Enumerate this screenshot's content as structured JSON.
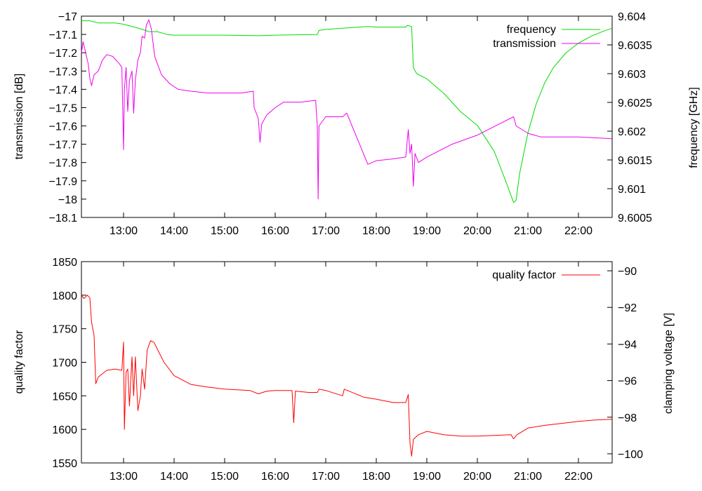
{
  "chart_data": [
    {
      "type": "line",
      "ylabel_left": "transmission [dB]",
      "ylabel_right": "frequency [GHz]",
      "x_ticks": [
        "13:00",
        "14:00",
        "15:00",
        "16:00",
        "17:00",
        "18:00",
        "19:00",
        "20:00",
        "21:00",
        "22:00"
      ],
      "x_range": [
        "12:10",
        "22:40"
      ],
      "yleft_ticks": [
        "-17",
        "-17.1",
        "-17.2",
        "-17.3",
        "-17.4",
        "-17.5",
        "-17.6",
        "-17.7",
        "-17.8",
        "-17.9",
        "-18",
        "-18.1"
      ],
      "yleft_range": [
        -18.1,
        -17
      ],
      "yright_ticks": [
        "9.604",
        "9.6035",
        "9.603",
        "9.6025",
        "9.602",
        "9.6015",
        "9.601",
        "9.6005"
      ],
      "yright_range": [
        9.6005,
        9.604
      ],
      "legend_position": "top-right",
      "series": [
        {
          "name": "frequency",
          "axis": "right",
          "color": "#00dd00",
          "points": [
            [
              "12:10",
              9.60392
            ],
            [
              "12:20",
              9.60392
            ],
            [
              "12:30",
              9.60388
            ],
            [
              "12:50",
              9.60388
            ],
            [
              "13:00",
              9.60386
            ],
            [
              "13:20",
              9.60378
            ],
            [
              "13:30",
              9.60373
            ],
            [
              "13:40",
              9.60373
            ],
            [
              "13:52",
              9.60368
            ],
            [
              "14:00",
              9.60367
            ],
            [
              "15:00",
              9.60367
            ],
            [
              "15:40",
              9.60366
            ],
            [
              "16:00",
              9.60367
            ],
            [
              "16:50",
              9.60368
            ],
            [
              "16:52",
              9.60375
            ],
            [
              "17:00",
              9.60377
            ],
            [
              "17:30",
              9.6038
            ],
            [
              "17:50",
              9.60382
            ],
            [
              "18:00",
              9.60381
            ],
            [
              "18:35",
              9.60381
            ],
            [
              "18:37",
              9.60384
            ],
            [
              "18:42",
              9.60382
            ],
            [
              "18:44",
              9.6031
            ],
            [
              "18:48",
              9.603
            ],
            [
              "19:00",
              9.60291
            ],
            [
              "19:20",
              9.60266
            ],
            [
              "19:40",
              9.60234
            ],
            [
              "20:00",
              9.6021
            ],
            [
              "20:20",
              9.60165
            ],
            [
              "20:35",
              9.60108
            ],
            [
              "20:43",
              9.60076
            ],
            [
              "20:46",
              9.6008
            ],
            [
              "20:50",
              9.60125
            ],
            [
              "21:00",
              9.60197
            ],
            [
              "21:10",
              9.60248
            ],
            [
              "21:20",
              9.60284
            ],
            [
              "21:30",
              9.6031
            ],
            [
              "21:45",
              9.60336
            ],
            [
              "22:00",
              9.60353
            ],
            [
              "22:15",
              9.60365
            ],
            [
              "22:30",
              9.60374
            ],
            [
              "22:40",
              9.60379
            ]
          ]
        },
        {
          "name": "transmission",
          "axis": "left",
          "color": "#ee00ee",
          "points": [
            [
              "12:10",
              -17.2
            ],
            [
              "12:12",
              -17.14
            ],
            [
              "12:15",
              -17.2
            ],
            [
              "12:18",
              -17.26
            ],
            [
              "12:20",
              -17.34
            ],
            [
              "12:22",
              -17.38
            ],
            [
              "12:25",
              -17.32
            ],
            [
              "12:30",
              -17.3
            ],
            [
              "12:35",
              -17.24
            ],
            [
              "12:40",
              -17.21
            ],
            [
              "12:47",
              -17.22
            ],
            [
              "12:55",
              -17.26
            ],
            [
              "12:58",
              -17.28
            ],
            [
              "13:00",
              -17.73
            ],
            [
              "13:01",
              -17.4
            ],
            [
              "13:03",
              -17.28
            ],
            [
              "13:05",
              -17.52
            ],
            [
              "13:07",
              -17.35
            ],
            [
              "13:10",
              -17.3
            ],
            [
              "13:12",
              -17.53
            ],
            [
              "13:14",
              -17.35
            ],
            [
              "13:17",
              -17.24
            ],
            [
              "13:20",
              -17.2
            ],
            [
              "13:22",
              -17.11
            ],
            [
              "13:25",
              -17.12
            ],
            [
              "13:27",
              -17.05
            ],
            [
              "13:30",
              -17.02
            ],
            [
              "13:33",
              -17.07
            ],
            [
              "13:37",
              -17.22
            ],
            [
              "13:45",
              -17.32
            ],
            [
              "13:55",
              -17.37
            ],
            [
              "14:05",
              -17.4
            ],
            [
              "14:20",
              -17.41
            ],
            [
              "14:40",
              -17.42
            ],
            [
              "15:00",
              -17.42
            ],
            [
              "15:20",
              -17.42
            ],
            [
              "15:34",
              -17.41
            ],
            [
              "15:35",
              -17.5
            ],
            [
              "15:40",
              -17.56
            ],
            [
              "15:42",
              -17.69
            ],
            [
              "15:44",
              -17.59
            ],
            [
              "15:50",
              -17.54
            ],
            [
              "16:00",
              -17.5
            ],
            [
              "16:10",
              -17.47
            ],
            [
              "16:30",
              -17.47
            ],
            [
              "16:48",
              -17.46
            ],
            [
              "16:50",
              -17.6
            ],
            [
              "16:51",
              -18.0
            ],
            [
              "16:52",
              -17.6
            ],
            [
              "17:00",
              -17.55
            ],
            [
              "17:20",
              -17.55
            ],
            [
              "17:25",
              -17.53
            ],
            [
              "17:50",
              -17.81
            ],
            [
              "18:00",
              -17.79
            ],
            [
              "18:20",
              -17.78
            ],
            [
              "18:35",
              -17.77
            ],
            [
              "18:38",
              -17.62
            ],
            [
              "18:40",
              -17.75
            ],
            [
              "18:42",
              -17.7
            ],
            [
              "18:44",
              -17.93
            ],
            [
              "18:46",
              -17.75
            ],
            [
              "18:50",
              -17.8
            ],
            [
              "19:00",
              -17.77
            ],
            [
              "19:30",
              -17.7
            ],
            [
              "20:00",
              -17.65
            ],
            [
              "20:30",
              -17.58
            ],
            [
              "20:43",
              -17.55
            ],
            [
              "20:46",
              -17.6
            ],
            [
              "21:00",
              -17.64
            ],
            [
              "21:15",
              -17.66
            ],
            [
              "22:00",
              -17.66
            ],
            [
              "22:40",
              -17.67
            ]
          ]
        }
      ]
    },
    {
      "type": "line",
      "ylabel_left": "quality factor",
      "ylabel_right": "clamping voltage [V]",
      "x_ticks": [
        "13:00",
        "14:00",
        "15:00",
        "16:00",
        "17:00",
        "18:00",
        "19:00",
        "20:00",
        "21:00",
        "22:00"
      ],
      "x_range": [
        "12:10",
        "22:40"
      ],
      "yleft_ticks": [
        "1850",
        "1800",
        "1750",
        "1700",
        "1650",
        "1600",
        "1550"
      ],
      "yleft_range": [
        1550,
        1850
      ],
      "yright_ticks": [
        "-90",
        "-92",
        "-94",
        "-96",
        "-98",
        "-100"
      ],
      "yright_range": [
        -100.5,
        -89.5
      ],
      "legend_position": "top-right",
      "series": [
        {
          "name": "quality factor",
          "axis": "left",
          "color": "#ff0000",
          "points": [
            [
              "12:10",
              1800
            ],
            [
              "12:13",
              1795
            ],
            [
              "12:17",
              1800
            ],
            [
              "12:20",
              1796
            ],
            [
              "12:22",
              1760
            ],
            [
              "12:25",
              1740
            ],
            [
              "12:27",
              1668
            ],
            [
              "12:30",
              1678
            ],
            [
              "12:40",
              1688
            ],
            [
              "12:50",
              1690
            ],
            [
              "12:58",
              1688
            ],
            [
              "13:00",
              1730
            ],
            [
              "13:01",
              1600
            ],
            [
              "13:03",
              1685
            ],
            [
              "13:05",
              1690
            ],
            [
              "13:07",
              1635
            ],
            [
              "13:10",
              1708
            ],
            [
              "13:12",
              1650
            ],
            [
              "13:14",
              1708
            ],
            [
              "13:17",
              1628
            ],
            [
              "13:20",
              1650
            ],
            [
              "13:22",
              1690
            ],
            [
              "13:25",
              1660
            ],
            [
              "13:28",
              1718
            ],
            [
              "13:32",
              1732
            ],
            [
              "13:36",
              1730
            ],
            [
              "13:40",
              1720
            ],
            [
              "13:48",
              1700
            ],
            [
              "14:00",
              1680
            ],
            [
              "14:20",
              1667
            ],
            [
              "14:40",
              1663
            ],
            [
              "15:00",
              1660
            ],
            [
              "15:30",
              1658
            ],
            [
              "15:40",
              1653
            ],
            [
              "15:50",
              1657
            ],
            [
              "16:00",
              1658
            ],
            [
              "16:20",
              1658
            ],
            [
              "16:22",
              1610
            ],
            [
              "16:24",
              1657
            ],
            [
              "16:40",
              1655
            ],
            [
              "16:50",
              1655
            ],
            [
              "16:52",
              1660
            ],
            [
              "17:00",
              1658
            ],
            [
              "17:20",
              1650
            ],
            [
              "17:22",
              1660
            ],
            [
              "17:45",
              1648
            ],
            [
              "18:00",
              1645
            ],
            [
              "18:20",
              1640
            ],
            [
              "18:35",
              1640
            ],
            [
              "18:38",
              1652
            ],
            [
              "18:40",
              1580
            ],
            [
              "18:42",
              1560
            ],
            [
              "18:44",
              1585
            ],
            [
              "18:50",
              1592
            ],
            [
              "19:00",
              1597
            ],
            [
              "19:20",
              1592
            ],
            [
              "19:40",
              1590
            ],
            [
              "20:00",
              1590
            ],
            [
              "20:20",
              1591
            ],
            [
              "20:40",
              1592
            ],
            [
              "20:43",
              1586
            ],
            [
              "20:47",
              1592
            ],
            [
              "21:00",
              1602
            ],
            [
              "21:20",
              1606
            ],
            [
              "21:40",
              1609
            ],
            [
              "22:00",
              1612
            ],
            [
              "22:20",
              1614
            ],
            [
              "22:40",
              1615
            ]
          ]
        }
      ]
    }
  ]
}
